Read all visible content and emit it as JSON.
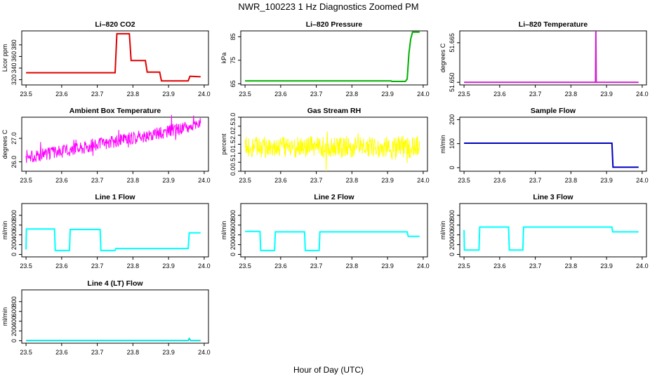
{
  "figure": {
    "title": "NWR_100223  1 Hz Diagnostics Zoomed PM",
    "xlabel": "Hour of Day (UTC)"
  },
  "chart_data": [
    {
      "type": "line",
      "title": "Li–820 CO2",
      "ylabel": "Licor ppm",
      "color": "#e00000",
      "xlim": [
        23.5,
        24.0
      ],
      "ylim": [
        311,
        404
      ],
      "yticks": [
        320,
        340,
        360,
        380
      ],
      "xticks": [
        23.5,
        23.6,
        23.7,
        23.8,
        23.9,
        24.0
      ],
      "x": [
        23.5,
        23.75,
        23.755,
        23.79,
        23.795,
        23.835,
        23.84,
        23.875,
        23.88,
        23.955,
        23.96,
        23.99
      ],
      "y": [
        332,
        332,
        399,
        399,
        353,
        353,
        333,
        333,
        318,
        318,
        326,
        325
      ]
    },
    {
      "type": "line",
      "title": "Li–820 Pressure",
      "ylabel": "kPa",
      "color": "#00b000",
      "xlim": [
        23.5,
        24.0
      ],
      "ylim": [
        64.5,
        87.5
      ],
      "yticks": [
        65,
        75,
        85
      ],
      "xticks": [
        23.5,
        23.6,
        23.7,
        23.8,
        23.9,
        24.0
      ],
      "x": [
        23.5,
        23.91,
        23.912,
        23.95,
        23.955,
        23.96,
        23.965,
        23.97,
        23.99
      ],
      "y": [
        66.2,
        66.2,
        66.0,
        66.0,
        67,
        78,
        84,
        87,
        87
      ]
    },
    {
      "type": "line",
      "title": "Li–820 Temperature",
      "ylabel": "degrees C",
      "color": "#d020d0",
      "xlim": [
        23.5,
        24.0
      ],
      "ylim": [
        51.649,
        51.6695
      ],
      "yticks": [
        51.65,
        51.665
      ],
      "yticklabels": [
        "51.650",
        "51.665"
      ],
      "xticks": [
        23.5,
        23.6,
        23.7,
        23.8,
        23.9,
        24.0
      ],
      "x": [
        23.5,
        23.869,
        23.87,
        23.871,
        23.99
      ],
      "y": [
        51.65,
        51.65,
        51.6695,
        51.65,
        51.65
      ]
    },
    {
      "type": "line",
      "title": "Ambient Box Temperature",
      "ylabel": "degrees C",
      "color": "#ff00ff",
      "xlim": [
        23.5,
        24.0
      ],
      "ylim": [
        25.6,
        27.9
      ],
      "yticks": [
        26.0,
        27.0
      ],
      "yticklabels": [
        "26.0",
        "27.0"
      ],
      "xticks": [
        23.5,
        23.6,
        23.7,
        23.8,
        23.9,
        24.0
      ],
      "x": [
        23.5,
        23.6,
        23.7,
        23.8,
        23.9,
        23.99
      ],
      "y": [
        26.2,
        26.45,
        26.75,
        27.0,
        27.3,
        27.6
      ],
      "noise": 0.55
    },
    {
      "type": "line",
      "title": "Gas Stream RH",
      "ylabel": "percent",
      "color": "#ffff00",
      "xlim": [
        23.5,
        24.0
      ],
      "ylim": [
        0,
        3.0
      ],
      "yticks": [
        0.0,
        0.5,
        1.0,
        1.5,
        2.0,
        2.5,
        3.0
      ],
      "yticklabels": [
        "0.0",
        "0.5",
        "1.0",
        "1.5",
        "2.0",
        "2.5",
        "3.0"
      ],
      "xticks": [
        23.5,
        23.6,
        23.7,
        23.8,
        23.9,
        24.0
      ],
      "x": [
        23.5,
        23.99
      ],
      "y": [
        1.35,
        1.35
      ],
      "noise": 1.2
    },
    {
      "type": "line",
      "title": "Sample Flow",
      "ylabel": "ml/min",
      "color": "#0000c0",
      "xlim": [
        23.5,
        24.0
      ],
      "ylim": [
        -15,
        210
      ],
      "yticks": [
        0,
        100,
        200
      ],
      "xticks": [
        23.5,
        23.6,
        23.7,
        23.8,
        23.9,
        24.0
      ],
      "x": [
        23.5,
        23.915,
        23.918,
        23.99
      ],
      "y": [
        102,
        102,
        2,
        2
      ]
    },
    {
      "type": "line",
      "title": "Line 1 Flow",
      "ylabel": "ml/min",
      "color": "#00ffff",
      "xlim": [
        23.5,
        24.0
      ],
      "ylim": [
        -50,
        1040
      ],
      "yticks": [
        0,
        200,
        400,
        600,
        800
      ],
      "xticks": [
        23.5,
        23.6,
        23.7,
        23.8,
        23.9,
        24.0
      ],
      "x": [
        23.5,
        23.501,
        23.58,
        23.582,
        23.622,
        23.624,
        23.708,
        23.71,
        23.75,
        23.752,
        23.955,
        23.958,
        23.99
      ],
      "y": [
        100,
        520,
        520,
        80,
        80,
        510,
        510,
        80,
        80,
        120,
        120,
        440,
        440
      ]
    },
    {
      "type": "line",
      "title": "Line 2 Flow",
      "ylabel": "ml/min",
      "color": "#00ffff",
      "xlim": [
        23.5,
        24.0
      ],
      "ylim": [
        -50,
        1040
      ],
      "yticks": [
        0,
        200,
        400,
        600,
        800
      ],
      "xticks": [
        23.5,
        23.6,
        23.7,
        23.8,
        23.9,
        24.0
      ],
      "x": [
        23.5,
        23.542,
        23.544,
        23.583,
        23.585,
        23.667,
        23.669,
        23.708,
        23.71,
        23.955,
        23.958,
        23.99
      ],
      "y": [
        470,
        470,
        80,
        80,
        460,
        460,
        80,
        80,
        460,
        460,
        370,
        370
      ]
    },
    {
      "type": "line",
      "title": "Line 3 Flow",
      "ylabel": "ml/min",
      "color": "#00ffff",
      "xlim": [
        23.5,
        24.0
      ],
      "ylim": [
        -50,
        1040
      ],
      "yticks": [
        0,
        200,
        400,
        600,
        800
      ],
      "xticks": [
        23.5,
        23.6,
        23.7,
        23.8,
        23.9,
        24.0
      ],
      "x": [
        23.5,
        23.501,
        23.542,
        23.544,
        23.625,
        23.627,
        23.665,
        23.667,
        23.915,
        23.917,
        23.99
      ],
      "y": [
        500,
        90,
        90,
        560,
        560,
        90,
        90,
        560,
        560,
        460,
        460
      ]
    },
    {
      "type": "line",
      "title": "Line 4 (LT) Flow",
      "ylabel": "ml/min",
      "color": "#00e0e0",
      "xlim": [
        23.5,
        24.0
      ],
      "ylim": [
        -50,
        1040
      ],
      "yticks": [
        0,
        200,
        400,
        600,
        800
      ],
      "xticks": [
        23.5,
        23.6,
        23.7,
        23.8,
        23.9,
        24.0
      ],
      "x": [
        23.5,
        23.955,
        23.958,
        23.962,
        23.99
      ],
      "y": [
        5,
        5,
        45,
        5,
        5
      ]
    }
  ]
}
